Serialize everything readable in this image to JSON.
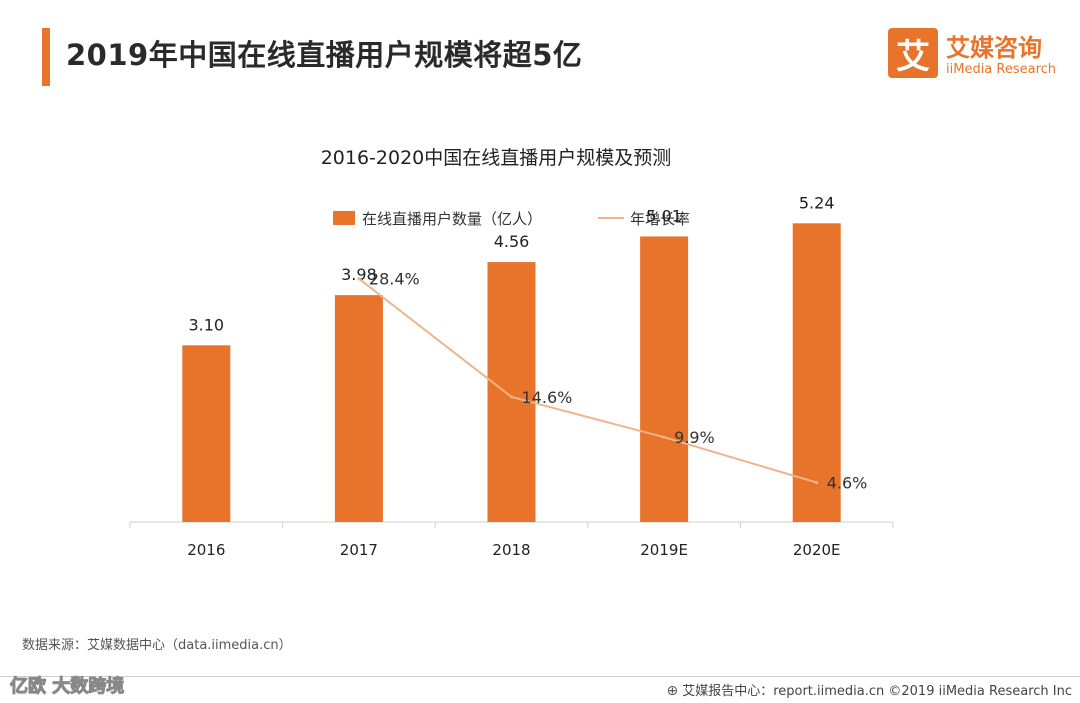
{
  "header": {
    "title": "2019年中国在线直播用户规模将超5亿"
  },
  "logo": {
    "mark": "艾",
    "name_cn": "艾媒咨询",
    "name_en": "iiMedia Research"
  },
  "chart_data": {
    "type": "bar",
    "title": "2016-2020中国在线直播用户规模及预测",
    "categories": [
      "2016",
      "2017",
      "2018",
      "2019E",
      "2020E"
    ],
    "ylim": [
      0,
      6
    ],
    "series": [
      {
        "name": "在线直播用户数量（亿人）",
        "type": "bar",
        "values": [
          3.1,
          3.98,
          4.56,
          5.01,
          5.24
        ],
        "labels": [
          "3.10",
          "3.98",
          "4.56",
          "5.01",
          "5.24"
        ],
        "color": "#e8742b"
      },
      {
        "name": "年增长率",
        "type": "line",
        "values": [
          null,
          28.4,
          14.6,
          9.9,
          4.6
        ],
        "labels": [
          "",
          "28.4%",
          "14.6%",
          "9.9%",
          "4.6%"
        ],
        "color": "#f0b38a",
        "ylim": [
          0,
          30
        ]
      }
    ],
    "legend": "top-center",
    "grid": false
  },
  "source_text": "数据来源：艾媒数据中心（data.iimedia.cn）",
  "footer": {
    "icon": "report-icon",
    "text": "艾媒报告中心：report.iimedia.cn  ©2019  iiMedia Research  Inc"
  },
  "watermark": "亿欧 大数跨境"
}
